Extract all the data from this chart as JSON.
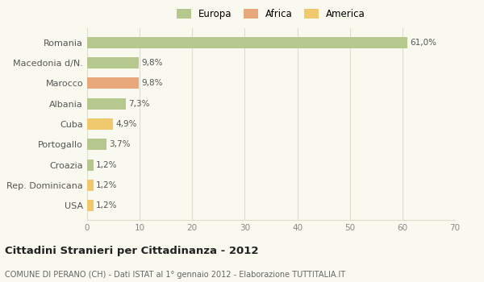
{
  "categories": [
    "Romania",
    "Macedonia d/N.",
    "Marocco",
    "Albania",
    "Cuba",
    "Portogallo",
    "Croazia",
    "Rep. Dominicana",
    "USA"
  ],
  "values": [
    61.0,
    9.8,
    9.8,
    7.3,
    4.9,
    3.7,
    1.2,
    1.2,
    1.2
  ],
  "colors": [
    "#b5c98e",
    "#b5c98e",
    "#e8a87c",
    "#b5c98e",
    "#f0c96e",
    "#b5c98e",
    "#b5c98e",
    "#f0c96e",
    "#f0c96e"
  ],
  "labels": [
    "61,0%",
    "9,8%",
    "9,8%",
    "7,3%",
    "4,9%",
    "3,7%",
    "1,2%",
    "1,2%",
    "1,2%"
  ],
  "legend": [
    {
      "label": "Europa",
      "color": "#b5c98e"
    },
    {
      "label": "Africa",
      "color": "#e8a87c"
    },
    {
      "label": "America",
      "color": "#f0c96e"
    }
  ],
  "xlim": [
    0,
    70
  ],
  "xticks": [
    0,
    10,
    20,
    30,
    40,
    50,
    60,
    70
  ],
  "title": "Cittadini Stranieri per Cittadinanza - 2012",
  "subtitle": "COMUNE DI PERANO (CH) - Dati ISTAT al 1° gennaio 2012 - Elaborazione TUTTITALIA.IT",
  "background_color": "#f9f9f0",
  "grid_color": "#ddddcc",
  "bar_height": 0.55
}
